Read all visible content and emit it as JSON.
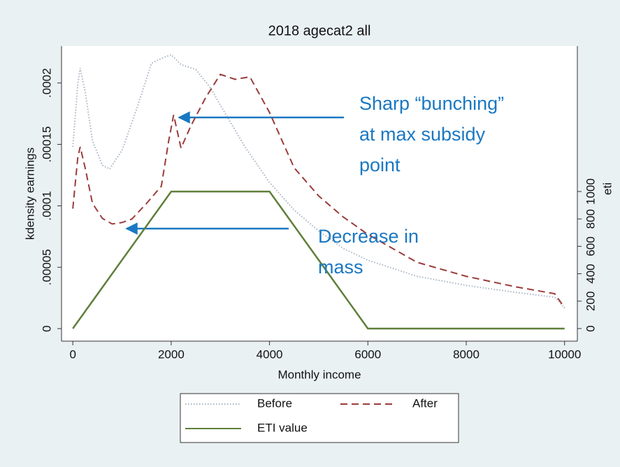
{
  "chart_data": {
    "type": "line",
    "title": "2018 agecat2 all",
    "x_label": "Monthly income",
    "y_label": "kdensity earnings",
    "y2_label": "eti",
    "x": [
      0,
      100,
      150,
      250,
      400,
      600,
      800,
      1000,
      1200,
      1500,
      1800,
      1950,
      2050,
      2200,
      2400,
      2700,
      3000,
      3300,
      3600,
      4000,
      4500,
      5000,
      5500,
      6000,
      7000,
      8000,
      9000,
      9800,
      10000
    ],
    "series": [
      {
        "name": "Before",
        "color": "#a8b4c4",
        "style": "dotted",
        "x": [
          0,
          100,
          150,
          250,
          400,
          600,
          750,
          1000,
          1300,
          1600,
          1800,
          2000,
          2200,
          2500,
          2800,
          3000,
          3500,
          4000,
          4500,
          5000,
          5500,
          6000,
          7000,
          8000,
          9000,
          9800,
          10000
        ],
        "values": [
          0.000148,
          0.000199,
          0.000212,
          0.000193,
          0.000153,
          0.000133,
          0.00013,
          0.000145,
          0.000179,
          0.000216,
          0.00022,
          0.000223,
          0.000215,
          0.000211,
          0.000196,
          0.000182,
          0.000148,
          0.000119,
          9.66e-05,
          7.95e-05,
          6.53e-05,
          5.57e-05,
          4.26e-05,
          3.52e-05,
          2.95e-05,
          2.56e-05,
          1.7e-05
        ]
      },
      {
        "name": "After",
        "color": "#9b3b3b",
        "style": "dashed",
        "x": [
          0,
          100,
          150,
          250,
          400,
          600,
          800,
          1000,
          1200,
          1500,
          1800,
          1950,
          2050,
          2200,
          2400,
          2700,
          3000,
          3300,
          3600,
          4000,
          4500,
          5000,
          5500,
          6000,
          7000,
          8000,
          9000,
          9800,
          10000
        ],
        "values": [
          9.77e-05,
          0.000139,
          0.000148,
          0.000131,
          0.000102,
          8.98e-05,
          8.52e-05,
          8.64e-05,
          8.92e-05,
          0.000102,
          0.000116,
          0.000153,
          0.000174,
          0.000147,
          0.000165,
          0.000188,
          0.000207,
          0.000203,
          0.000205,
          0.000176,
          0.000131,
          0.000108,
          9.09e-05,
          7.67e-05,
          5.4e-05,
          4.26e-05,
          3.41e-05,
          2.84e-05,
          1.7e-05
        ]
      },
      {
        "name": "ETI value",
        "color": "#5f7f3a",
        "style": "solid",
        "axis": "y2",
        "x": [
          0,
          2000,
          4000,
          6000,
          10000
        ],
        "values": [
          0,
          1000,
          1000,
          0,
          0
        ]
      }
    ],
    "xlim": [
      -230,
      10260
    ],
    "xticks": [
      0,
      2000,
      4000,
      6000,
      8000,
      10000
    ],
    "ylim": [
      -1.02e-05,
      0.00023
    ],
    "yticks": [
      0,
      {
        "value": 5e-05,
        "label": ".00005"
      },
      {
        "value": 0.0001,
        "label": ".0001"
      },
      {
        "value": 0.00015,
        "label": ".00015"
      },
      {
        "value": 0.0002,
        "label": ".0002"
      }
    ],
    "y2lim": [
      -92,
      2061
    ],
    "y2ticks": [
      0,
      200,
      400,
      600,
      800,
      1000
    ],
    "annotations": [
      [
        "Sharp “bunching”",
        "at max subsidy",
        "point"
      ],
      [
        "Decrease in",
        "mass"
      ]
    ],
    "annotation_color": "#1a78c2",
    "legend": "bottom"
  }
}
